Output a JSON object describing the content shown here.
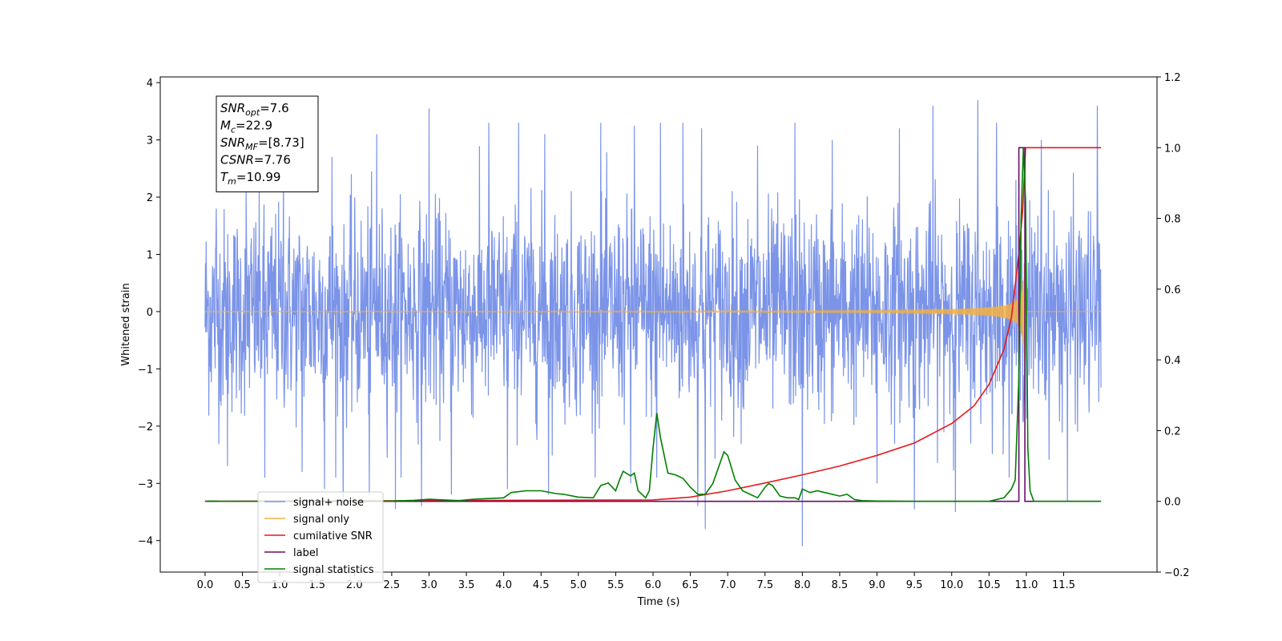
{
  "chart_data": {
    "type": "line",
    "xlabel": "Time (s)",
    "ylabel": "Whitened strain",
    "xlim": [
      -0.6,
      12.75
    ],
    "ylim": [
      -4.55,
      4.1
    ],
    "y2lim": [
      -0.2,
      1.2
    ],
    "x_ticks": [
      0.0,
      0.5,
      1.0,
      1.5,
      2.0,
      2.5,
      3.0,
      3.5,
      4.0,
      4.5,
      5.0,
      5.5,
      6.0,
      6.5,
      7.0,
      7.5,
      8.0,
      8.5,
      9.0,
      9.5,
      10.0,
      10.5,
      11.0,
      11.5
    ],
    "x_tick_labels": [
      "0.0",
      "0.5",
      "1.0",
      "1.5",
      "2.0",
      "2.5",
      "3.0",
      "3.5",
      "4.0",
      "4.5",
      "5.0",
      "5.5",
      "6.0",
      "6.5",
      "7.0",
      "7.5",
      "8.0",
      "8.5",
      "9.0",
      "9.5",
      "10.0",
      "10.5",
      "11.0",
      "11.5"
    ],
    "y_ticks": [
      4,
      3,
      2,
      1,
      0,
      -1,
      -2,
      -3,
      -4
    ],
    "y_tick_labels": [
      "4",
      "3",
      "2",
      "1",
      "0",
      "−1",
      "−2",
      "−3",
      "−4"
    ],
    "y2_ticks": [
      1.2,
      1.0,
      0.8,
      0.6,
      0.4,
      0.2,
      0.0,
      -0.2
    ],
    "y2_tick_labels": [
      "1.2",
      "1.0",
      "0.8",
      "0.6",
      "0.4",
      "0.2",
      "0.0",
      "−0.2"
    ],
    "grid": false,
    "legend_position": "lower-left",
    "annotation": [
      {
        "base": "SNR",
        "sub": "opt",
        "value": "=7.6"
      },
      {
        "base": "M",
        "sub": "c",
        "value": "=22.9"
      },
      {
        "base": "SNR",
        "sub": "MF",
        "value": "=[8.73]"
      },
      {
        "base": "CSNR",
        "sub": "",
        "value": "=7.76"
      },
      {
        "base": "T",
        "sub": "m",
        "value": "=10.99"
      }
    ],
    "series": [
      {
        "name": "signal+ noise",
        "axis": "left",
        "color": "#7b94e8",
        "kind": "noise",
        "x_range": [
          0.0,
          12.0
        ],
        "typical_amplitude": [
          -1.9,
          2.0
        ],
        "spikes": [
          [
            0.15,
            1.8
          ],
          [
            0.3,
            -2.7
          ],
          [
            0.55,
            2.1
          ],
          [
            0.8,
            -2.9
          ],
          [
            1.05,
            2.4
          ],
          [
            1.3,
            -2.8
          ],
          [
            1.6,
            -3.1
          ],
          [
            1.7,
            2.7
          ],
          [
            1.85,
            -3.4
          ],
          [
            2.2,
            -3.2
          ],
          [
            2.3,
            3.1
          ],
          [
            2.55,
            -3.45
          ],
          [
            2.9,
            -3.4
          ],
          [
            3.0,
            3.55
          ],
          [
            3.3,
            -3.2
          ],
          [
            3.8,
            3.3
          ],
          [
            4.05,
            -3.1
          ],
          [
            4.2,
            3.3
          ],
          [
            4.55,
            3.1
          ],
          [
            4.6,
            -3.2
          ],
          [
            5.3,
            3.3
          ],
          [
            5.7,
            -3.0
          ],
          [
            5.75,
            3.25
          ],
          [
            6.05,
            -2.9
          ],
          [
            6.1,
            3.3
          ],
          [
            6.4,
            3.3
          ],
          [
            6.6,
            -3.4
          ],
          [
            6.65,
            3.2
          ],
          [
            6.7,
            -3.8
          ],
          [
            7.4,
            2.9
          ],
          [
            7.9,
            3.3
          ],
          [
            8.0,
            -4.1
          ],
          [
            8.4,
            3.0
          ],
          [
            9.0,
            -3.0
          ],
          [
            9.3,
            3.2
          ],
          [
            9.5,
            -3.45
          ],
          [
            9.75,
            3.6
          ],
          [
            10.05,
            -3.5
          ],
          [
            10.35,
            3.7
          ],
          [
            10.6,
            3.3
          ],
          [
            11.2,
            3.0
          ],
          [
            11.55,
            -3.3
          ],
          [
            11.95,
            3.6
          ]
        ]
      },
      {
        "name": "signal only",
        "axis": "left",
        "color": "#f5b041",
        "kind": "chirp",
        "x_range": [
          0.0,
          12.0
        ],
        "merger_time": 10.99,
        "peak_amplitude": 1.85
      },
      {
        "name": "cumilative SNR",
        "axis": "right",
        "color": "#e41a1c",
        "x": [
          0.0,
          6.0,
          6.5,
          7.0,
          7.5,
          8.0,
          8.5,
          9.0,
          9.5,
          10.0,
          10.3,
          10.5,
          10.7,
          10.8,
          10.9,
          10.95,
          10.99,
          11.0,
          12.0
        ],
        "y": [
          0.0,
          0.004,
          0.012,
          0.03,
          0.052,
          0.075,
          0.1,
          0.13,
          0.165,
          0.22,
          0.27,
          0.33,
          0.43,
          0.52,
          0.7,
          0.82,
          1.0,
          1.0,
          1.0
        ]
      },
      {
        "name": "label",
        "axis": "right",
        "color": "#6a0d6a",
        "x": [
          0.0,
          10.9,
          10.9,
          10.98,
          10.98,
          12.0
        ],
        "y": [
          0.0,
          0.0,
          1.0,
          1.0,
          0.0,
          0.0
        ]
      },
      {
        "name": "signal statistics",
        "axis": "right",
        "color": "#008000",
        "x": [
          0.0,
          0.1,
          0.2,
          0.4,
          1.0,
          1.5,
          2.0,
          2.5,
          2.8,
          3.0,
          3.2,
          3.4,
          3.6,
          3.8,
          4.0,
          4.1,
          4.3,
          4.5,
          4.7,
          4.8,
          5.0,
          5.2,
          5.3,
          5.4,
          5.5,
          5.55,
          5.6,
          5.7,
          5.75,
          5.8,
          5.9,
          5.95,
          6.0,
          6.05,
          6.1,
          6.2,
          6.3,
          6.4,
          6.5,
          6.6,
          6.7,
          6.8,
          6.9,
          6.95,
          7.0,
          7.1,
          7.2,
          7.3,
          7.4,
          7.5,
          7.55,
          7.6,
          7.7,
          7.8,
          7.9,
          7.95,
          8.0,
          8.1,
          8.2,
          8.3,
          8.5,
          8.6,
          8.7,
          8.8,
          9.0,
          9.5,
          10.0,
          10.5,
          10.7,
          10.8,
          10.85,
          10.9,
          10.93,
          10.96,
          10.99,
          11.02,
          11.05,
          11.1,
          12.0
        ],
        "y": [
          0.0,
          0.001,
          0.0,
          0.0,
          0.0,
          0.0,
          0.0,
          0.001,
          0.003,
          0.006,
          0.004,
          0.002,
          0.006,
          0.008,
          0.01,
          0.025,
          0.03,
          0.03,
          0.022,
          0.02,
          0.012,
          0.01,
          0.045,
          0.052,
          0.03,
          0.06,
          0.085,
          0.072,
          0.08,
          0.03,
          0.01,
          0.03,
          0.15,
          0.25,
          0.18,
          0.08,
          0.075,
          0.065,
          0.04,
          0.02,
          0.02,
          0.05,
          0.11,
          0.14,
          0.13,
          0.06,
          0.03,
          0.02,
          0.01,
          0.04,
          0.05,
          0.045,
          0.015,
          0.01,
          0.01,
          0.005,
          0.035,
          0.025,
          0.03,
          0.025,
          0.015,
          0.02,
          0.005,
          0.002,
          0.001,
          0.0,
          0.0,
          0.0,
          0.01,
          0.035,
          0.06,
          0.35,
          0.8,
          1.0,
          0.85,
          0.15,
          0.03,
          0.0,
          0.0
        ]
      }
    ]
  }
}
